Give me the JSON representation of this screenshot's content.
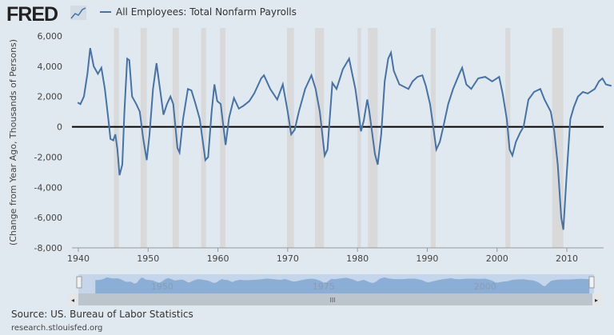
{
  "header": {
    "logo": "FRED",
    "legend": "All Employees: Total Nonfarm Payrolls"
  },
  "footer": {
    "source": "Source: US. Bureau of Labor Statistics",
    "url": "research.stlouisfed.org"
  },
  "navigator": {
    "labels": [
      "1950",
      "1975",
      "2000"
    ],
    "scroll_grip": "III"
  },
  "colors": {
    "line": "#4572a7",
    "recession": "#d9d9d9",
    "background": "#e1e9f0"
  },
  "chart_data": {
    "type": "line",
    "title": "",
    "xlabel": "",
    "ylabel": "(Change from Year Ago, Thousands of Persons)",
    "xlim": [
      1939,
      2016.5
    ],
    "ylim": [
      -8000,
      6000
    ],
    "xticks": [
      1940,
      1950,
      1960,
      1970,
      1980,
      1990,
      2000,
      2010
    ],
    "xtick_labels": [
      "1940",
      "1950",
      "1960",
      "1970",
      "1980",
      "1990",
      "2000",
      "2010"
    ],
    "yticks": [
      6000,
      4000,
      2000,
      0,
      -2000,
      -4000,
      -6000,
      -8000
    ],
    "ytick_labels": [
      "6,000",
      "4,000",
      "2,000",
      "0",
      "-2,000",
      "-4,000",
      "-6,000",
      "-8,000"
    ],
    "recessions": [
      [
        1945.1,
        1945.8
      ],
      [
        1948.9,
        1949.8
      ],
      [
        1953.5,
        1954.4
      ],
      [
        1957.6,
        1958.3
      ],
      [
        1960.3,
        1961.1
      ],
      [
        1969.9,
        1970.9
      ],
      [
        1973.9,
        1975.2
      ],
      [
        1980.0,
        1980.5
      ],
      [
        1981.5,
        1982.9
      ],
      [
        1990.5,
        1991.2
      ],
      [
        2001.2,
        2001.9
      ],
      [
        2007.9,
        2009.5
      ]
    ],
    "series": [
      {
        "name": "All Employees: Total Nonfarm Payrolls",
        "x": [
          1939.9,
          1940.3,
          1940.8,
          1941.3,
          1941.7,
          1942.2,
          1942.8,
          1943.3,
          1943.8,
          1944.3,
          1944.6,
          1945,
          1945.3,
          1945.6,
          1945.9,
          1946.3,
          1946.6,
          1947,
          1947.3,
          1947.7,
          1948.3,
          1948.8,
          1949.3,
          1949.8,
          1950.2,
          1950.7,
          1951.2,
          1951.7,
          1952.2,
          1952.7,
          1953.2,
          1953.6,
          1954.2,
          1954.5,
          1955,
          1955.7,
          1956.2,
          1956.8,
          1957.4,
          1958.2,
          1958.6,
          1959.1,
          1959.5,
          1959.9,
          1960.4,
          1961.1,
          1961.6,
          1962.3,
          1963,
          1963.7,
          1964.5,
          1965.2,
          1966.2,
          1966.6,
          1967.5,
          1968.5,
          1969.3,
          1970,
          1970.5,
          1971,
          1971.6,
          1972.5,
          1973.4,
          1974,
          1974.6,
          1975.3,
          1975.7,
          1976.4,
          1977,
          1977.9,
          1978.8,
          1979.2,
          1979.7,
          1980.2,
          1980.5,
          1980.9,
          1981.4,
          1981.7,
          1982.5,
          1982.9,
          1983.4,
          1983.9,
          1984.4,
          1984.8,
          1985.2,
          1986,
          1987.3,
          1987.9,
          1988.6,
          1989.3,
          1989.8,
          1990.4,
          1990.8,
          1991.3,
          1991.8,
          1992.3,
          1993,
          1993.7,
          1994.6,
          1995,
          1995.6,
          1996.3,
          1997.3,
          1998.3,
          1999.3,
          2000.3,
          2000.8,
          2001.4,
          2001.8,
          2002.2,
          2002.7,
          2003.3,
          2003.8,
          2004.5,
          2005.3,
          2006.2,
          2006.8,
          2007.7,
          2008.2,
          2008.7,
          2009.2,
          2009.5,
          2010,
          2010.5,
          2011,
          2011.6,
          2012.3,
          2013,
          2014,
          2014.6,
          2015.1,
          2015.6,
          2016.4
        ],
        "values": [
          1600,
          1500,
          2000,
          3500,
          5200,
          4000,
          3500,
          3900,
          2500,
          500,
          -800,
          -900,
          -500,
          -1500,
          -3200,
          -2500,
          1000,
          4500,
          4400,
          2000,
          1500,
          1000,
          -800,
          -2200,
          -500,
          2500,
          4200,
          2500,
          800,
          1500,
          2000,
          1500,
          -1400,
          -1700,
          500,
          2500,
          2400,
          1500,
          500,
          -2200,
          -2000,
          1000,
          2800,
          1700,
          1500,
          -1200,
          600,
          1900,
          1200,
          1400,
          1700,
          2200,
          3200,
          3400,
          2500,
          1800,
          2800,
          1000,
          -500,
          -200,
          1000,
          2500,
          3400,
          2500,
          1000,
          -1900,
          -1500,
          2900,
          2500,
          3800,
          4500,
          3600,
          2500,
          800,
          -300,
          400,
          1800,
          1000,
          -1800,
          -2500,
          -500,
          3000,
          4500,
          4900,
          3700,
          2800,
          2500,
          3000,
          3300,
          3400,
          2700,
          1500,
          200,
          -1500,
          -1000,
          0,
          1500,
          2500,
          3500,
          3900,
          2800,
          2500,
          3200,
          3300,
          3000,
          3300,
          2200,
          500,
          -1500,
          -1900,
          -1000,
          -400,
          0,
          1800,
          2300,
          2500,
          1800,
          1000,
          -300,
          -2500,
          -6000,
          -6800,
          -3000,
          500,
          1300,
          2000,
          2300,
          2200,
          2500,
          3000,
          3200,
          2800,
          2700
        ]
      }
    ]
  }
}
